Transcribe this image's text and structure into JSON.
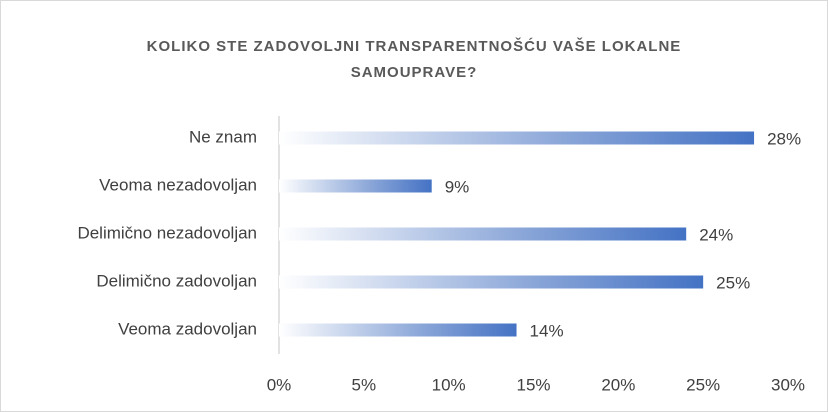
{
  "chart_data": {
    "type": "bar",
    "orientation": "horizontal",
    "title": "KOLIKO STE ZADOVOLJNI TRANSPARENTNOŠĆU VAŠE LOKALNE SAMOUPRAVE?",
    "categories": [
      "Ne znam",
      "Veoma nezadovoljan",
      "Delimično nezadovoljan",
      "Delimično zadovoljan",
      "Veoma zadovoljan"
    ],
    "values": [
      28,
      9,
      24,
      25,
      14
    ],
    "value_labels": [
      "28%",
      "9%",
      "24%",
      "25%",
      "14%"
    ],
    "color": "#4472c4",
    "xlim": [
      0,
      30
    ],
    "xticks": [
      {
        "value": 0,
        "label": "0%"
      },
      {
        "value": 5,
        "label": "5%"
      },
      {
        "value": 10,
        "label": "10%"
      },
      {
        "value": 15,
        "label": "15%"
      },
      {
        "value": 20,
        "label": "20%"
      },
      {
        "value": 25,
        "label": "25%"
      },
      {
        "value": 30,
        "label": "30%"
      }
    ],
    "grid": false
  }
}
